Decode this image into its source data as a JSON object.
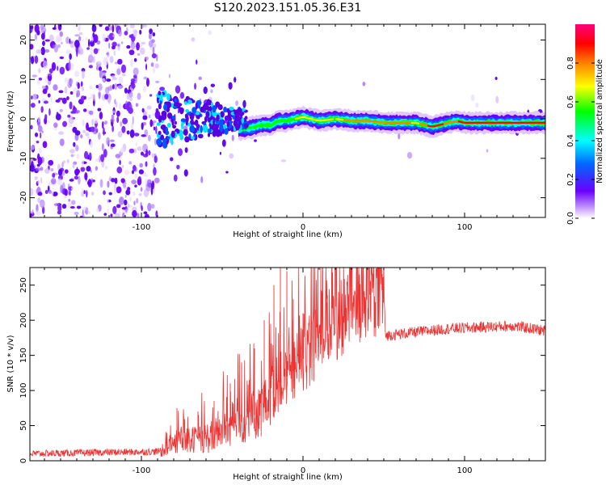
{
  "title": "S120.2023.151.05.36.E31",
  "chart_data": [
    {
      "type": "heatmap",
      "xlabel": "Height of straight line (km)",
      "ylabel": "Frequency (Hz)",
      "xlim": [
        -169,
        150
      ],
      "ylim": [
        -25,
        24
      ],
      "xticks": [
        -100,
        0,
        100
      ],
      "yticks": [
        20,
        10,
        0,
        -10,
        -20
      ],
      "colorbar": {
        "label": "Normalized spectral amplitude",
        "range": [
          0.0,
          1.0
        ],
        "ticks": [
          "0.0",
          "0.2",
          "0.4",
          "0.6",
          "0.8"
        ],
        "colors": [
          "#ffffff",
          "#6a00ff",
          "#0066ff",
          "#00ffff",
          "#00ff00",
          "#ffff00",
          "#ff8000",
          "#ff0000",
          "#ff0080"
        ]
      },
      "ridge": {
        "description": "dominant frequency track",
        "points": [
          [
            -35,
            -2.5
          ],
          [
            -30,
            -2
          ],
          [
            -25,
            -1.5
          ],
          [
            -20,
            -1.5
          ],
          [
            -15,
            -0.5
          ],
          [
            -10,
            -0.5
          ],
          [
            -5,
            0
          ],
          [
            0,
            0.5
          ],
          [
            5,
            0
          ],
          [
            10,
            -0.5
          ],
          [
            20,
            0
          ],
          [
            30,
            -0.5
          ],
          [
            40,
            -0.5
          ],
          [
            50,
            -1
          ],
          [
            60,
            -1
          ],
          [
            70,
            -1
          ],
          [
            75,
            -1.5
          ],
          [
            80,
            -2
          ],
          [
            85,
            -1.5
          ],
          [
            90,
            -1
          ],
          [
            95,
            -0.5
          ],
          [
            100,
            -1
          ],
          [
            120,
            -1
          ],
          [
            150,
            -1
          ]
        ]
      }
    },
    {
      "type": "line",
      "xlabel": "Height of straight line (km)",
      "ylabel": "SNR (10 * v/v)",
      "xlim": [
        -169,
        150
      ],
      "ylim": [
        0,
        275
      ],
      "xticks": [
        -100,
        0,
        100
      ],
      "yticks": [
        0,
        50,
        100,
        150,
        200,
        250
      ],
      "series": [
        {
          "name": "SNR",
          "color": "#ee3333",
          "trend": [
            [
              -169,
              10
            ],
            [
              -90,
              13
            ],
            [
              -85,
              18
            ],
            [
              -75,
              28
            ],
            [
              -60,
              32
            ],
            [
              -45,
              48
            ],
            [
              -35,
              58
            ],
            [
              -25,
              72
            ],
            [
              -15,
              110
            ],
            [
              -5,
              130
            ],
            [
              5,
              160
            ],
            [
              15,
              185
            ],
            [
              25,
              210
            ],
            [
              35,
              225
            ],
            [
              45,
              240
            ],
            [
              50,
              245
            ],
            [
              51,
              178
            ],
            [
              70,
              183
            ],
            [
              90,
              188
            ],
            [
              110,
              190
            ],
            [
              130,
              192
            ],
            [
              150,
              185
            ]
          ],
          "spikes": [
            [
              -78,
              75
            ],
            [
              -65,
              70
            ],
            [
              -55,
              85
            ],
            [
              -45,
              110
            ],
            [
              -38,
              140
            ],
            [
              -30,
              160
            ],
            [
              -24,
              200
            ],
            [
              -18,
              250
            ],
            [
              -14,
              275
            ],
            [
              -10,
              270
            ],
            [
              -6,
              230
            ],
            [
              0,
              210
            ],
            [
              8,
              215
            ],
            [
              15,
              225
            ],
            [
              22,
              240
            ],
            [
              28,
              230
            ],
            [
              33,
              250
            ],
            [
              42,
              255
            ],
            [
              49,
              260
            ]
          ]
        }
      ]
    }
  ]
}
